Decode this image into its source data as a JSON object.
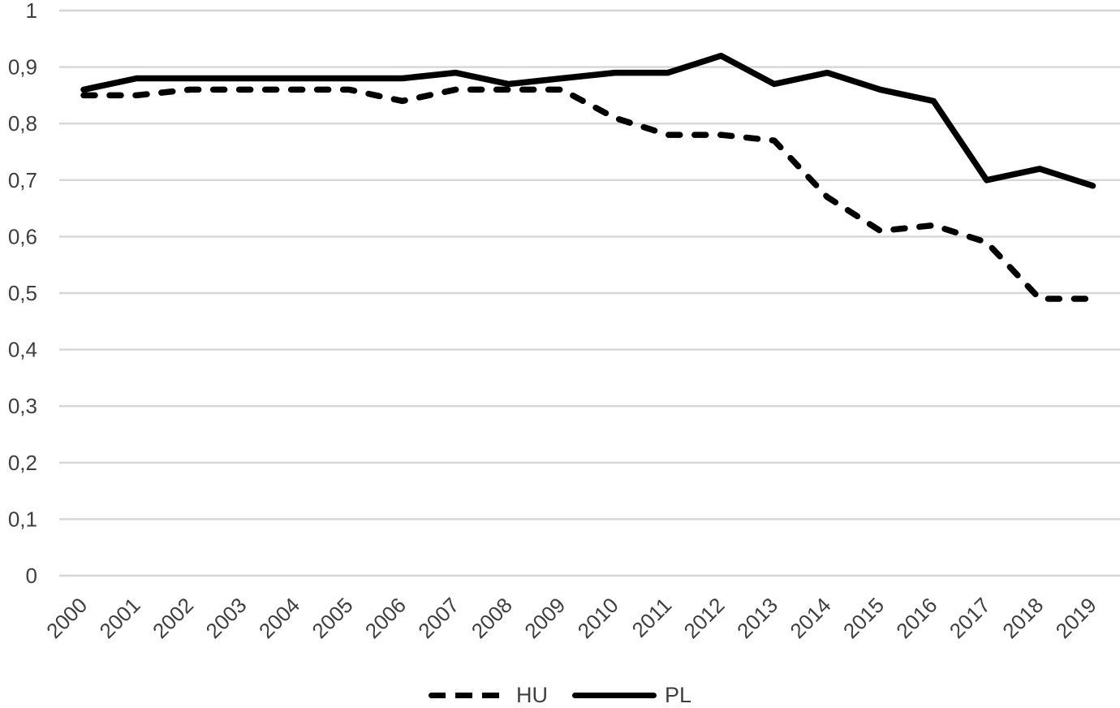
{
  "chart_data": {
    "type": "line",
    "title": "",
    "xlabel": "",
    "ylabel": "",
    "categories": [
      "2000",
      "2001",
      "2002",
      "2003",
      "2004",
      "2005",
      "2006",
      "2007",
      "2008",
      "2009",
      "2010",
      "2011",
      "2012",
      "2013",
      "2014",
      "2015",
      "2016",
      "2017",
      "2018",
      "2019"
    ],
    "series": [
      {
        "name": "HU",
        "line_style": "dashed",
        "color": "#000000",
        "values": [
          0.85,
          0.85,
          0.86,
          0.86,
          0.86,
          0.86,
          0.84,
          0.86,
          0.86,
          0.86,
          0.81,
          0.78,
          0.78,
          0.77,
          0.67,
          0.61,
          0.62,
          0.59,
          0.49,
          0.49
        ]
      },
      {
        "name": "PL",
        "line_style": "solid",
        "color": "#000000",
        "values": [
          0.86,
          0.88,
          0.88,
          0.88,
          0.88,
          0.88,
          0.88,
          0.89,
          0.87,
          0.88,
          0.89,
          0.89,
          0.92,
          0.87,
          0.89,
          0.86,
          0.84,
          0.7,
          0.72,
          0.69
        ]
      }
    ],
    "ylim": [
      0,
      1
    ],
    "ytick_interval": 0.1,
    "ytick_labels": [
      "0",
      "0,1",
      "0,2",
      "0,3",
      "0,4",
      "0,5",
      "0,6",
      "0,7",
      "0,8",
      "0,9",
      "1"
    ],
    "decimal_separator": ",",
    "grid": "horizontal",
    "legend_position": "bottom-center",
    "legend": [
      {
        "label": "HU",
        "line_style": "dashed"
      },
      {
        "label": "PL",
        "line_style": "solid"
      }
    ],
    "colors": {
      "series_line": "#000000",
      "gridline": "#d6d6d6",
      "axis_label": "#3f3f3f",
      "background": "#ffffff"
    }
  }
}
